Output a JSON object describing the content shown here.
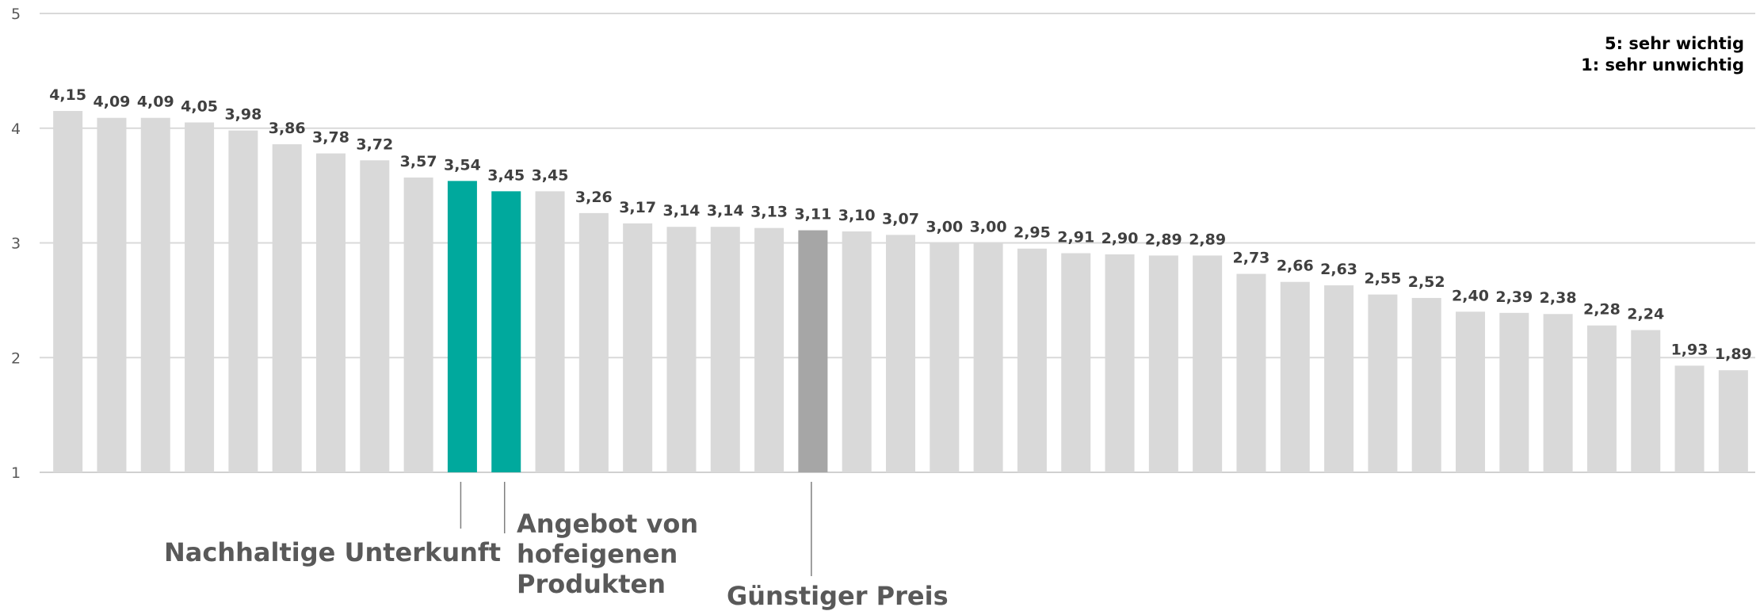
{
  "chart_data": {
    "type": "bar",
    "ylim": [
      1,
      5
    ],
    "yticks": [
      "1",
      "2",
      "3",
      "4",
      "5"
    ],
    "values": [
      4.15,
      4.09,
      4.09,
      4.05,
      3.98,
      3.86,
      3.78,
      3.72,
      3.57,
      3.54,
      3.45,
      3.45,
      3.26,
      3.17,
      3.14,
      3.14,
      3.13,
      3.11,
      3.1,
      3.07,
      3.0,
      3.0,
      2.95,
      2.91,
      2.9,
      2.89,
      2.89,
      2.73,
      2.66,
      2.63,
      2.55,
      2.52,
      2.4,
      2.39,
      2.38,
      2.28,
      2.24,
      1.93,
      1.89
    ],
    "value_labels": [
      "4,15",
      "4,09",
      "4,09",
      "4,05",
      "3,98",
      "3,86",
      "3,78",
      "3,72",
      "3,57",
      "3,54",
      "3,45",
      "3,45",
      "3,26",
      "3,17",
      "3,14",
      "3,14",
      "3,13",
      "3,11",
      "3,10",
      "3,07",
      "3,00",
      "3,00",
      "2,95",
      "2,91",
      "2,90",
      "2,89",
      "2,89",
      "2,73",
      "2,66",
      "2,63",
      "2,55",
      "2,52",
      "2,40",
      "2,39",
      "2,38",
      "2,28",
      "2,24",
      "1,93",
      "1,89"
    ],
    "highlights": [
      {
        "index": 9,
        "label": "Nachhaltige Unterkunft",
        "color": "#00A99D"
      },
      {
        "index": 10,
        "label": "Angebot von hofeigenen Produkten",
        "color": "#00A99D"
      },
      {
        "index": 17,
        "label": "Günstiger Preis",
        "color": "#A6A6A6"
      }
    ],
    "base_color": "#D9D9D9",
    "grid": true,
    "legend_lines": [
      "5: sehr wichtig",
      "1: sehr unwichtig"
    ],
    "legend_position": "top-right"
  },
  "callouts": {
    "nachhaltige": "Nachhaltige Unterkunft",
    "angebot_lines": [
      "Angebot von",
      "hofeigenen",
      "Produkten"
    ],
    "preis": "Günstiger Preis"
  }
}
